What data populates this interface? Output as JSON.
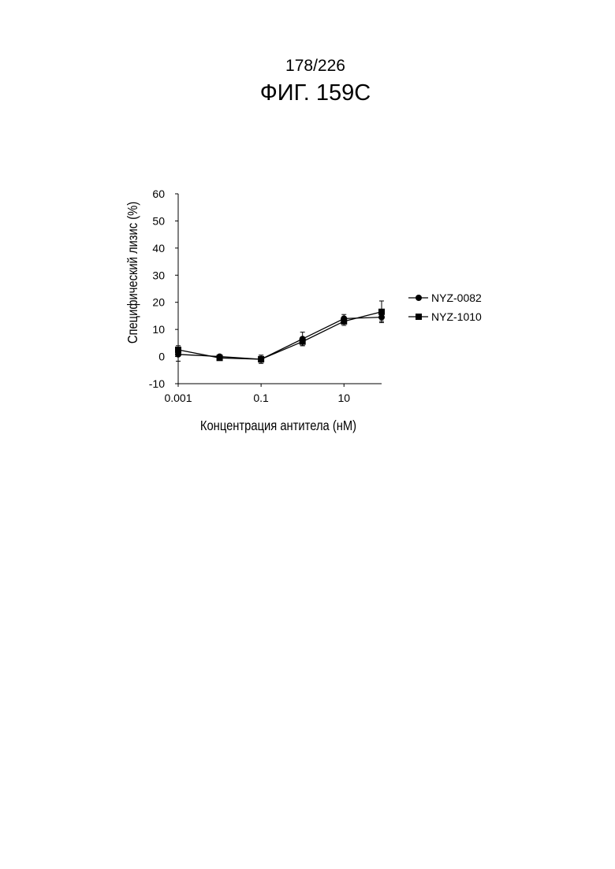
{
  "header": {
    "page_number": "178/226",
    "figure_title": "ФИГ. 159С"
  },
  "chart_data": {
    "type": "line",
    "xlabel": "Концентрация антитела (нМ)",
    "ylabel": "Специфический лизис (%)",
    "x_scale": "log",
    "xlim": [
      0.001,
      81
    ],
    "ylim": [
      -10,
      60
    ],
    "x_ticks": [
      {
        "value": 0.001,
        "label": "0.001"
      },
      {
        "value": 0.1,
        "label": "0.1"
      },
      {
        "value": 10,
        "label": "10"
      }
    ],
    "y_ticks": [
      {
        "value": -10,
        "label": "-10"
      },
      {
        "value": 0,
        "label": "0"
      },
      {
        "value": 10,
        "label": "10"
      },
      {
        "value": 20,
        "label": "20"
      },
      {
        "value": 30,
        "label": "30"
      },
      {
        "value": 40,
        "label": "40"
      },
      {
        "value": 50,
        "label": "50"
      },
      {
        "value": 60,
        "label": "60"
      }
    ],
    "x": [
      0.001,
      0.01,
      0.1,
      1,
      10,
      81
    ],
    "series": [
      {
        "name": "NYZ-0082",
        "marker": "circle",
        "values": [
          0.8,
          0,
          -1,
          6.5,
          14,
          14.5
        ],
        "errors": [
          2.5,
          0.5,
          1.5,
          2.5,
          1.5,
          1.5
        ]
      },
      {
        "name": "NYZ-1010",
        "marker": "square",
        "values": [
          2.5,
          -0.5,
          -1,
          5.5,
          13,
          16.5
        ],
        "errors": [
          1.5,
          0.5,
          1.5,
          1.5,
          1.5,
          4
        ]
      }
    ],
    "legend_position": "right",
    "grid": false
  }
}
